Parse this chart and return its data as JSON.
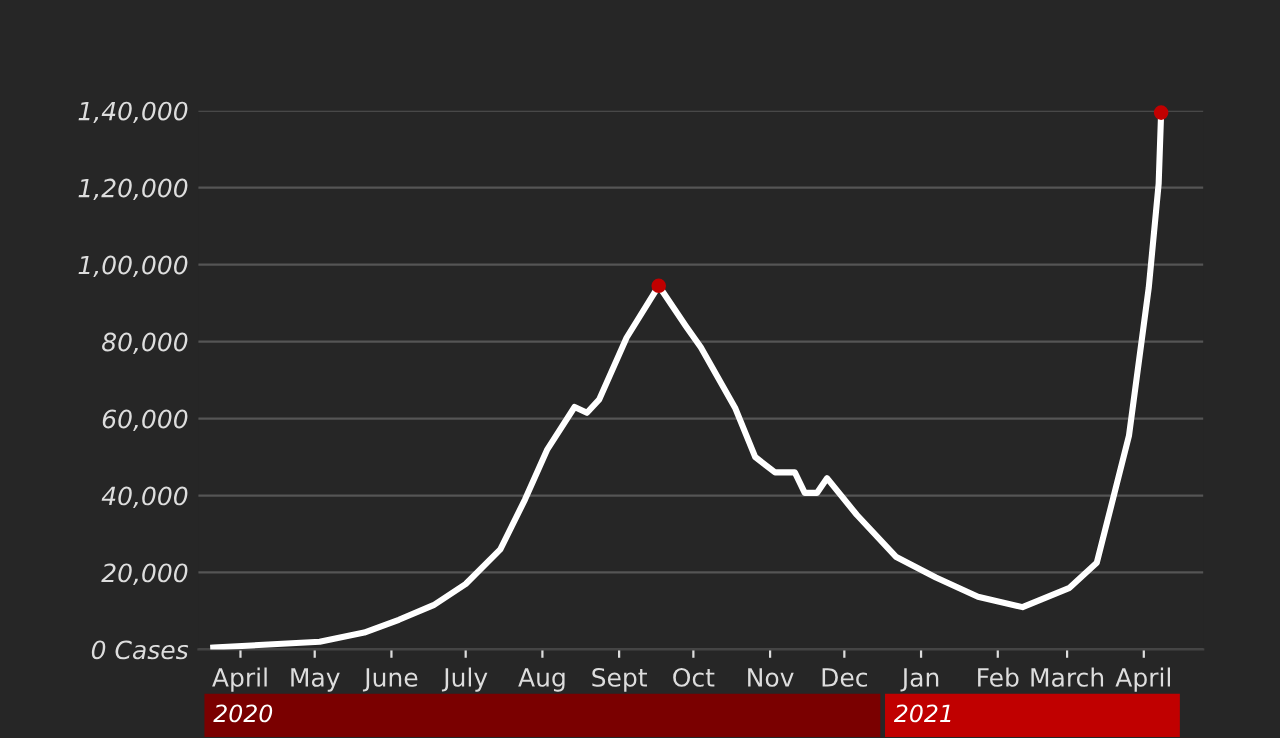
{
  "chart_data": {
    "type": "line",
    "series": [
      {
        "color": "#ffffff",
        "x": [
          "2020-04-04",
          "2020-05-17",
          "2020-06-04",
          "2020-06-18",
          "2020-07-02",
          "2020-07-15",
          "2020-07-29",
          "2020-08-08",
          "2020-08-17",
          "2020-08-28",
          "2020-09-02",
          "2020-09-07",
          "2020-09-18",
          "2020-10-01",
          "2020-10-12",
          "2020-10-18",
          "2020-11-01",
          "2020-11-09",
          "2020-11-17",
          "2020-11-25",
          "2020-11-29",
          "2020-12-04",
          "2020-12-08",
          "2020-12-20",
          "2021-01-05",
          "2021-01-21",
          "2021-02-07",
          "2021-02-25",
          "2021-03-16",
          "2021-03-27",
          "2021-04-09",
          "2021-04-17",
          "2021-04-21",
          "2021-04-22"
        ],
        "values": [
          500,
          2000,
          4400,
          7700,
          11500,
          17000,
          26000,
          39000,
          52000,
          63000,
          61500,
          65000,
          81000,
          94500,
          84000,
          78500,
          62600,
          50000,
          46000,
          46000,
          40700,
          40700,
          44500,
          35000,
          24000,
          18700,
          13700,
          11000,
          16000,
          22500,
          55500,
          94000,
          121000,
          139500
        ]
      },
      {
        "type": "scatter",
        "color": "#c00000",
        "marker": "circle",
        "x": [
          "2020-10-01",
          "2021-04-22"
        ],
        "values": [
          94500,
          139500
        ]
      }
    ],
    "xlim": [
      "2020-03-29",
      "2021-05-09"
    ],
    "xticks": [
      {
        "value": "2020-04-15",
        "label": "April"
      },
      {
        "value": "2020-05-15",
        "label": "May"
      },
      {
        "value": "2020-06-15",
        "label": "June"
      },
      {
        "value": "2020-07-15",
        "label": "July"
      },
      {
        "value": "2020-08-15",
        "label": "Aug"
      },
      {
        "value": "2020-09-15",
        "label": "Sept"
      },
      {
        "value": "2020-10-15",
        "label": "Oct"
      },
      {
        "value": "2020-11-15",
        "label": "Nov"
      },
      {
        "value": "2020-12-15",
        "label": "Dec"
      },
      {
        "value": "2021-01-15",
        "label": "Jan"
      },
      {
        "value": "2021-02-15",
        "label": "Feb"
      },
      {
        "value": "2021-03-15",
        "label": "March"
      },
      {
        "value": "2021-04-15",
        "label": "April"
      }
    ],
    "ylim": [
      0,
      140000
    ],
    "yticks": [
      {
        "value": 0,
        "label": "0 Cases"
      },
      {
        "value": 20000,
        "label": "20,000"
      },
      {
        "value": 40000,
        "label": "40,000"
      },
      {
        "value": 60000,
        "label": "60,000"
      },
      {
        "value": 80000,
        "label": "80,000"
      },
      {
        "value": 100000,
        "label": "1,00,000"
      },
      {
        "value": 120000,
        "label": "1,20,000"
      },
      {
        "value": 140000,
        "label": "1,40,000"
      }
    ],
    "grid": "y",
    "annotations": [
      "2020",
      "2021"
    ]
  }
}
